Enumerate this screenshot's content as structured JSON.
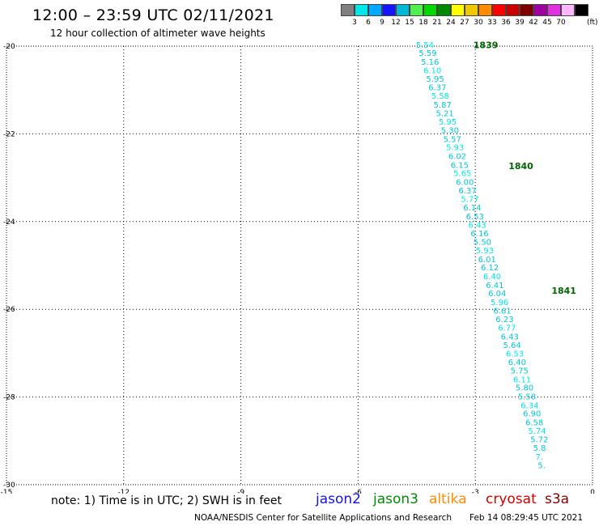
{
  "header": {
    "title": "12:00 – 23:59 UTC 02/11/2021",
    "subtitle": "12 hour collection of altimeter wave heights"
  },
  "colorbar": {
    "unit_label": "(ft)",
    "swatches": [
      {
        "color": "#808080",
        "label": ""
      },
      {
        "color": "#00e8e8",
        "label": "3"
      },
      {
        "color": "#00a8ff",
        "label": "6"
      },
      {
        "color": "#1414ff",
        "label": "9"
      },
      {
        "color": "#00b8d8",
        "label": "12"
      },
      {
        "color": "#50f050",
        "label": "15"
      },
      {
        "color": "#00d800",
        "label": "18"
      },
      {
        "color": "#008800",
        "label": "21"
      },
      {
        "color": "#ffff00",
        "label": "24"
      },
      {
        "color": "#f0c800",
        "label": "27"
      },
      {
        "color": "#ff8c00",
        "label": "30"
      },
      {
        "color": "#ff0000",
        "label": "33"
      },
      {
        "color": "#c80000",
        "label": "36"
      },
      {
        "color": "#800000",
        "label": "39"
      },
      {
        "color": "#a000a0",
        "label": "42"
      },
      {
        "color": "#e030e0",
        "label": "45"
      },
      {
        "color": "#ffb8ff",
        "label": "70"
      },
      {
        "color": "#000000",
        "label": ""
      }
    ]
  },
  "map": {
    "x_range": [
      -15,
      0
    ],
    "y_range": [
      -30,
      -20
    ],
    "x_ticks": [
      -15,
      -12,
      -9,
      -6,
      -3,
      0
    ],
    "y_ticks": [
      -20,
      -22,
      -24,
      -26,
      -28,
      -30
    ],
    "grid": "dotted"
  },
  "track": {
    "color_light": "#00e8e8",
    "color_mid": "#00c8d8",
    "label_color": "#006400",
    "passes": [
      {
        "id": "1839",
        "lon": -3.05,
        "lat": -19.97
      },
      {
        "id": "1840",
        "lon": -2.15,
        "lat": -22.73
      },
      {
        "id": "1841",
        "lon": -1.05,
        "lat": -25.57
      }
    ],
    "points": [
      {
        "lon": -4.52,
        "lat": -19.96,
        "v": "5.54"
      },
      {
        "lon": -4.45,
        "lat": -20.15,
        "v": "5.59"
      },
      {
        "lon": -4.39,
        "lat": -20.35,
        "v": "5.16"
      },
      {
        "lon": -4.33,
        "lat": -20.54,
        "v": "6.10"
      },
      {
        "lon": -4.26,
        "lat": -20.74,
        "v": "5.95"
      },
      {
        "lon": -4.2,
        "lat": -20.93,
        "v": "6.37"
      },
      {
        "lon": -4.13,
        "lat": -21.13,
        "v": "5.58"
      },
      {
        "lon": -4.07,
        "lat": -21.33,
        "v": "5.87"
      },
      {
        "lon": -4.01,
        "lat": -21.52,
        "v": "5.21"
      },
      {
        "lon": -3.94,
        "lat": -21.72,
        "v": "5.95"
      },
      {
        "lon": -3.88,
        "lat": -21.91,
        "v": "5.30"
      },
      {
        "lon": -3.82,
        "lat": -22.11,
        "v": "5.57"
      },
      {
        "lon": -3.75,
        "lat": -22.3,
        "v": "5.93"
      },
      {
        "lon": -3.69,
        "lat": -22.5,
        "v": "6.02"
      },
      {
        "lon": -3.63,
        "lat": -22.7,
        "v": "6.15"
      },
      {
        "lon": -3.56,
        "lat": -22.89,
        "v": "5.65"
      },
      {
        "lon": -3.5,
        "lat": -23.09,
        "v": "6.00"
      },
      {
        "lon": -3.43,
        "lat": -23.28,
        "v": "6.37"
      },
      {
        "lon": -3.37,
        "lat": -23.48,
        "v": "5.77"
      },
      {
        "lon": -3.31,
        "lat": -23.67,
        "v": "6.14"
      },
      {
        "lon": -3.24,
        "lat": -23.87,
        "v": "6.53"
      },
      {
        "lon": -3.18,
        "lat": -24.07,
        "v": "6.43"
      },
      {
        "lon": -3.12,
        "lat": -24.26,
        "v": "6.16"
      },
      {
        "lon": -3.05,
        "lat": -24.46,
        "v": "5.50"
      },
      {
        "lon": -2.99,
        "lat": -24.65,
        "v": "5.93"
      },
      {
        "lon": -2.93,
        "lat": -24.85,
        "v": "6.01"
      },
      {
        "lon": -2.86,
        "lat": -25.04,
        "v": "6.12"
      },
      {
        "lon": -2.8,
        "lat": -25.24,
        "v": "6.40"
      },
      {
        "lon": -2.73,
        "lat": -25.44,
        "v": "6.41"
      },
      {
        "lon": -2.67,
        "lat": -25.63,
        "v": "6.04"
      },
      {
        "lon": -2.61,
        "lat": -25.83,
        "v": "5.96"
      },
      {
        "lon": -2.54,
        "lat": -26.02,
        "v": "6.61"
      },
      {
        "lon": -2.48,
        "lat": -26.22,
        "v": "6.23"
      },
      {
        "lon": -2.42,
        "lat": -26.41,
        "v": "6.77"
      },
      {
        "lon": -2.35,
        "lat": -26.61,
        "v": "6.43"
      },
      {
        "lon": -2.29,
        "lat": -26.81,
        "v": "5.64"
      },
      {
        "lon": -2.22,
        "lat": -27.0,
        "v": "6.53"
      },
      {
        "lon": -2.16,
        "lat": -27.2,
        "v": "6.40"
      },
      {
        "lon": -2.1,
        "lat": -27.39,
        "v": "5.75"
      },
      {
        "lon": -2.03,
        "lat": -27.59,
        "v": "6.11"
      },
      {
        "lon": -1.97,
        "lat": -27.78,
        "v": "5.80"
      },
      {
        "lon": -1.91,
        "lat": -27.98,
        "v": "5.58"
      },
      {
        "lon": -1.84,
        "lat": -28.18,
        "v": "6.34"
      },
      {
        "lon": -1.78,
        "lat": -28.37,
        "v": "6.90"
      },
      {
        "lon": -1.72,
        "lat": -28.57,
        "v": "6.58"
      },
      {
        "lon": -1.65,
        "lat": -28.76,
        "v": "5.74"
      },
      {
        "lon": -1.59,
        "lat": -28.96,
        "v": "5.72"
      },
      {
        "lon": -1.52,
        "lat": -29.15,
        "v": "5.8"
      },
      {
        "lon": -1.46,
        "lat": -29.35,
        "v": "7."
      },
      {
        "lon": -1.4,
        "lat": -29.55,
        "v": "5."
      }
    ]
  },
  "footer": {
    "note": "note: 1) Time is in UTC; 2) SWH is in feet",
    "satellites": [
      {
        "name": "jason2",
        "color": "#1414e6"
      },
      {
        "name": "jason3",
        "color": "#008c00"
      },
      {
        "name": "altika",
        "color": "#ff8c00"
      },
      {
        "name": "cryosat",
        "color": "#d20000"
      },
      {
        "name": "s3a",
        "color": "#800000"
      }
    ],
    "credit": "NOAA/NESDIS Center for Satellite Applications and Research",
    "timestamp": "Feb 14 08:29:45 UTC 2021"
  }
}
